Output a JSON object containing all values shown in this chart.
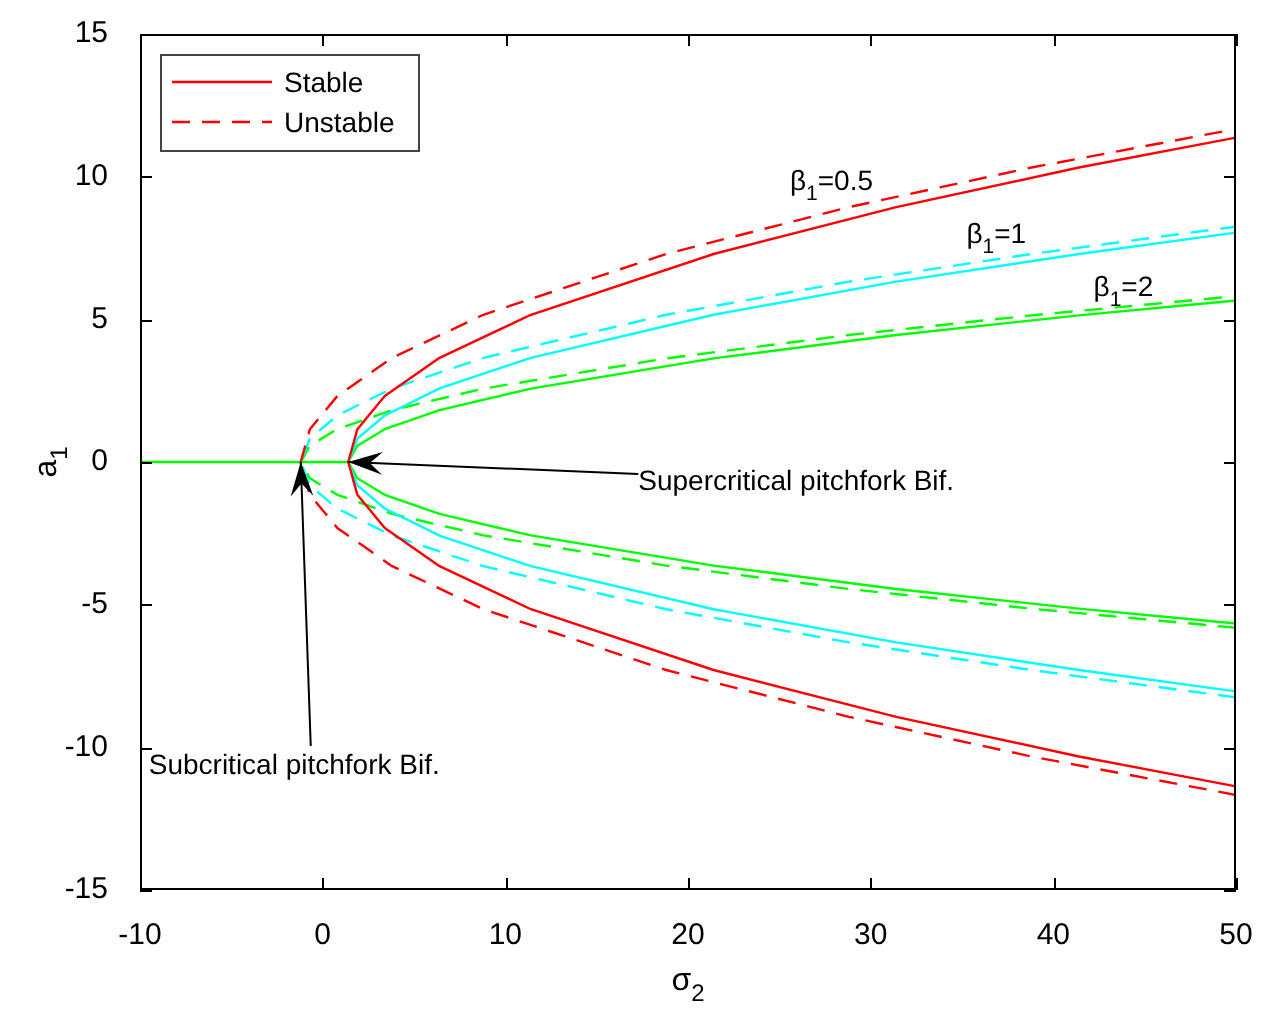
{
  "chart_data": {
    "type": "line",
    "xlabel": "σ$_{2}$",
    "ylabel": "a$_{1}$",
    "xlim": [
      -10,
      50
    ],
    "xticks": [
      -10,
      0,
      10,
      20,
      30,
      40,
      50
    ],
    "ylim": [
      -15,
      15
    ],
    "yticks": [
      -15,
      -10,
      -5,
      0,
      5,
      10,
      15
    ],
    "grid": false,
    "legend": "top left",
    "marker": "none",
    "series": [
      {
        "name": "Stable",
        "color": "#ff0000",
        "line_style": "solid",
        "x": [
          50,
          41.4,
          31.4,
          21.4,
          11.4,
          6.4,
          3.4,
          1.9,
          1.4,
          1.9,
          3.4,
          6.4,
          11.4,
          21.4,
          31.4,
          41.4,
          50
        ],
        "values": [
          -11.37,
          -10.32,
          -8.93,
          -7.29,
          -5.16,
          -3.65,
          -2.31,
          -1.15,
          0,
          1.15,
          2.31,
          3.65,
          5.16,
          7.29,
          8.93,
          10.32,
          11.37
        ]
      },
      {
        "name": "Unstable",
        "color": "#ff0000",
        "line_style": "dashed",
        "x": [
          50,
          38.8,
          28.8,
          18.8,
          8.8,
          3.8,
          0.8,
          -0.7,
          -1.2,
          -0.7,
          0.8,
          3.8,
          8.8,
          18.8,
          28.8,
          38.8,
          50
        ],
        "values": [
          -11.67,
          -10.32,
          -8.93,
          -7.29,
          -5.16,
          -3.65,
          -2.31,
          -1.15,
          0,
          1.15,
          2.31,
          3.65,
          5.16,
          7.29,
          8.93,
          10.32,
          11.67
        ]
      },
      {
        "color": "#00ffff",
        "line_style": "solid",
        "x": [
          50,
          41.4,
          31.4,
          21.4,
          11.4,
          6.4,
          3.4,
          1.9,
          1.4,
          1.9,
          3.4,
          6.4,
          11.4,
          21.4,
          31.4,
          41.4,
          50
        ],
        "values": [
          -8.04,
          -7.29,
          -6.32,
          -5.16,
          -3.65,
          -2.58,
          -1.63,
          -0.82,
          0,
          0.82,
          1.63,
          2.58,
          3.65,
          5.16,
          6.32,
          7.29,
          8.04
        ]
      },
      {
        "color": "#00ffff",
        "line_style": "dashed",
        "x": [
          50,
          38.8,
          28.8,
          18.8,
          8.8,
          3.8,
          0.8,
          -0.7,
          -1.2,
          -0.7,
          0.8,
          3.8,
          8.8,
          18.8,
          28.8,
          38.8,
          50
        ],
        "values": [
          -8.25,
          -7.29,
          -6.32,
          -5.16,
          -3.65,
          -2.58,
          -1.63,
          -0.82,
          0,
          0.82,
          1.63,
          2.58,
          3.65,
          5.16,
          6.32,
          7.29,
          8.25
        ]
      },
      {
        "color": "#00ff00",
        "line_style": "solid",
        "x": [
          50,
          41.4,
          31.4,
          21.4,
          11.4,
          6.4,
          3.4,
          1.9,
          1.4,
          1.9,
          3.4,
          6.4,
          11.4,
          21.4,
          31.4,
          41.4,
          50
        ],
        "values": [
          -5.66,
          -5.14,
          -4.45,
          -3.63,
          -2.57,
          -1.82,
          -1.15,
          -0.57,
          0,
          0.57,
          1.15,
          1.82,
          2.57,
          3.63,
          4.45,
          5.14,
          5.66
        ]
      },
      {
        "color": "#00ff00",
        "line_style": "dashed",
        "x": [
          50,
          38.8,
          28.8,
          18.8,
          8.8,
          3.8,
          0.8,
          -0.7,
          -1.2,
          -0.7,
          0.8,
          3.8,
          8.8,
          18.8,
          28.8,
          38.8,
          50
        ],
        "values": [
          -5.81,
          -5.14,
          -4.45,
          -3.63,
          -2.57,
          -1.82,
          -1.15,
          -0.57,
          0,
          0.57,
          1.15,
          1.82,
          2.57,
          3.63,
          4.45,
          5.14,
          5.81
        ]
      },
      {
        "color": "#00ff00",
        "line_style": "solid",
        "x": [
          -10,
          1.4
        ],
        "values": [
          0,
          0
        ]
      }
    ],
    "annotations": [
      "β$_{1}$=0.5",
      "β$_{1}$=1",
      "β$_{1}$=2",
      {
        "text": "Supercritical pitchfork Bif.",
        "x": 1.4,
        "y": 0
      },
      {
        "text": "Subcritical pitchfork Bif.",
        "x": -1.2,
        "y": 0
      }
    ]
  }
}
